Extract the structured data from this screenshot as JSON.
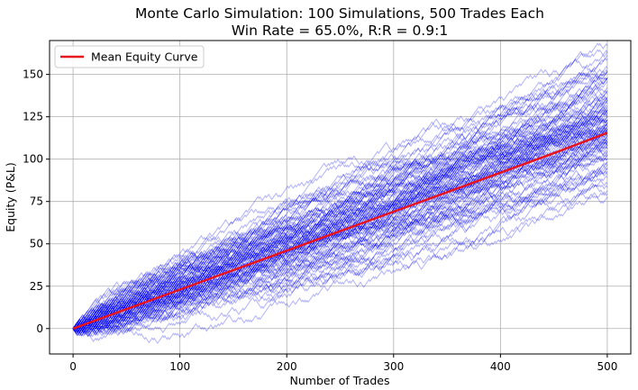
{
  "chart_data": {
    "type": "line",
    "title": "Monte Carlo Simulation: 100 Simulations, 500 Trades Each",
    "subtitle": "Win Rate = 65.0%, R:R = 0.9:1",
    "xlabel": "Number of Trades",
    "ylabel": "Equity (P&L)",
    "xlim": [
      -22,
      522
    ],
    "ylim": [
      -15,
      170
    ],
    "xticks": [
      0,
      100,
      200,
      300,
      400,
      500
    ],
    "yticks": [
      0,
      25,
      50,
      75,
      100,
      125,
      150
    ],
    "grid": true,
    "legend_position": "top-left",
    "simulations": {
      "count": 100,
      "trades": 500,
      "win_rate": 0.65,
      "reward_risk": 0.9,
      "color": "#0000ff",
      "opacity": 0.3
    },
    "series": [
      {
        "name": "Mean Equity Curve",
        "color": "#e8141b",
        "x": [
          0,
          50,
          100,
          150,
          200,
          250,
          300,
          350,
          400,
          450,
          500
        ],
        "values": [
          0,
          11.5,
          23,
          34.5,
          46,
          57.5,
          69,
          80.5,
          92,
          103.5,
          115.5
        ]
      }
    ]
  }
}
